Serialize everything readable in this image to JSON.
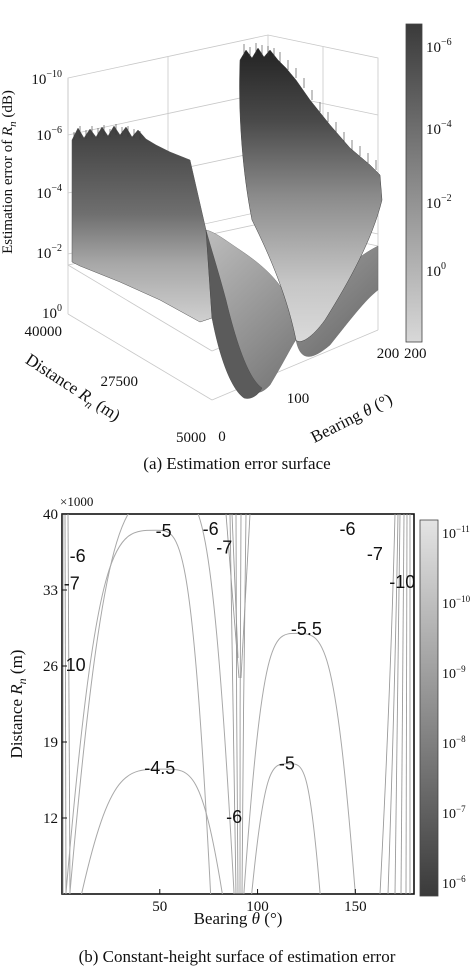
{
  "chart_data": [
    {
      "type": "surface",
      "title": "(a) Estimation error surface",
      "zlabel": "Estimation error of R_n (dB)",
      "zlabel_prefix": "Estimation error of ",
      "zlabel_var": "R",
      "zlabel_sub": "n",
      "zlabel_suffix": " (dB)",
      "ylabel_prefix": "Distance ",
      "ylabel_var": "R",
      "ylabel_sub": "n",
      "ylabel_suffix": " (m)",
      "xlabel_prefix": "Bearing ",
      "xlabel_var": "θ",
      "xlabel_suffix": " (°)",
      "x_ticks": [
        "0",
        "100",
        "200"
      ],
      "y_ticks": [
        "5000",
        "27500",
        "40000"
      ],
      "z_ticks": [
        {
          "base": "10",
          "exp": "0"
        },
        {
          "base": "10",
          "exp": "−2"
        },
        {
          "base": "10",
          "exp": "−4"
        },
        {
          "base": "10",
          "exp": "−6"
        },
        {
          "base": "10",
          "exp": "−10"
        }
      ],
      "colorbar_ticks": [
        {
          "base": "10",
          "exp": "−6"
        },
        {
          "base": "10",
          "exp": "−4"
        },
        {
          "base": "10",
          "exp": "−2"
        },
        {
          "base": "10",
          "exp": "0"
        }
      ],
      "colormap": [
        "#3a3a3a",
        "#d8d8d8"
      ],
      "surface_shape": "two valleys with minima near bearing 50° and 125°, walls rising at 0°, 90° and 180°",
      "grid": true
    },
    {
      "type": "contour",
      "title": "(b) Constant-height surface of estimation error",
      "xlabel_prefix": "Bearing ",
      "xlabel_var": "θ",
      "xlabel_suffix": " (°)",
      "ylabel_prefix": "Distance ",
      "ylabel_var": "R",
      "ylabel_sub": "n",
      "ylabel_suffix": " (m)",
      "y_multiplier": "×1000",
      "xlim": [
        0,
        180
      ],
      "ylim": [
        5,
        40
      ],
      "x_ticks": [
        50,
        100,
        150
      ],
      "y_ticks": [
        12,
        19,
        26,
        33,
        40
      ],
      "contours": [
        {
          "label": "-4.5",
          "x": [
            10,
            52,
            82
          ],
          "y": [
            5,
            16.5,
            5
          ]
        },
        {
          "label": "-5",
          "x": [
            2,
            48,
            76
          ],
          "y": [
            5,
            38.5,
            5
          ]
        },
        {
          "label": "-6",
          "x": [
            4,
            56,
            88
          ],
          "y": [
            5,
            42,
            5
          ]
        },
        {
          "label": "-5",
          "x": [
            97,
            116,
            132
          ],
          "y": [
            5,
            17,
            5
          ]
        },
        {
          "label": "-5.5",
          "x": [
            93,
            120,
            150
          ],
          "y": [
            5,
            29,
            5
          ]
        }
      ],
      "inline_labels": [
        {
          "text": "-6",
          "x": 8,
          "y": 36
        },
        {
          "text": "-7",
          "x": 5,
          "y": 33.5
        },
        {
          "text": "10",
          "x": 7,
          "y": 26
        },
        {
          "text": "-5",
          "x": 52,
          "y": 38.3
        },
        {
          "text": "-6",
          "x": 76,
          "y": 38.5
        },
        {
          "text": "-7",
          "x": 83,
          "y": 36.8
        },
        {
          "text": "-5.5",
          "x": 125,
          "y": 29.3
        },
        {
          "text": "-4.5",
          "x": 50,
          "y": 16.5
        },
        {
          "text": "-5",
          "x": 115,
          "y": 16.9
        },
        {
          "text": "-6",
          "x": 88,
          "y": 12
        },
        {
          "text": "-6",
          "x": 146,
          "y": 38.5
        },
        {
          "text": "-7",
          "x": 160,
          "y": 36.2
        },
        {
          "text": "-10",
          "x": 174,
          "y": 33.6
        }
      ],
      "colorbar_ticks": [
        {
          "base": "10",
          "exp": "−11"
        },
        {
          "base": "10",
          "exp": "−10"
        },
        {
          "base": "10",
          "exp": "−9"
        },
        {
          "base": "10",
          "exp": "−8"
        },
        {
          "base": "10",
          "exp": "−7"
        },
        {
          "base": "10",
          "exp": "−6"
        }
      ],
      "colormap": [
        "#d8d8d8",
        "#3a3a3a"
      ]
    }
  ]
}
